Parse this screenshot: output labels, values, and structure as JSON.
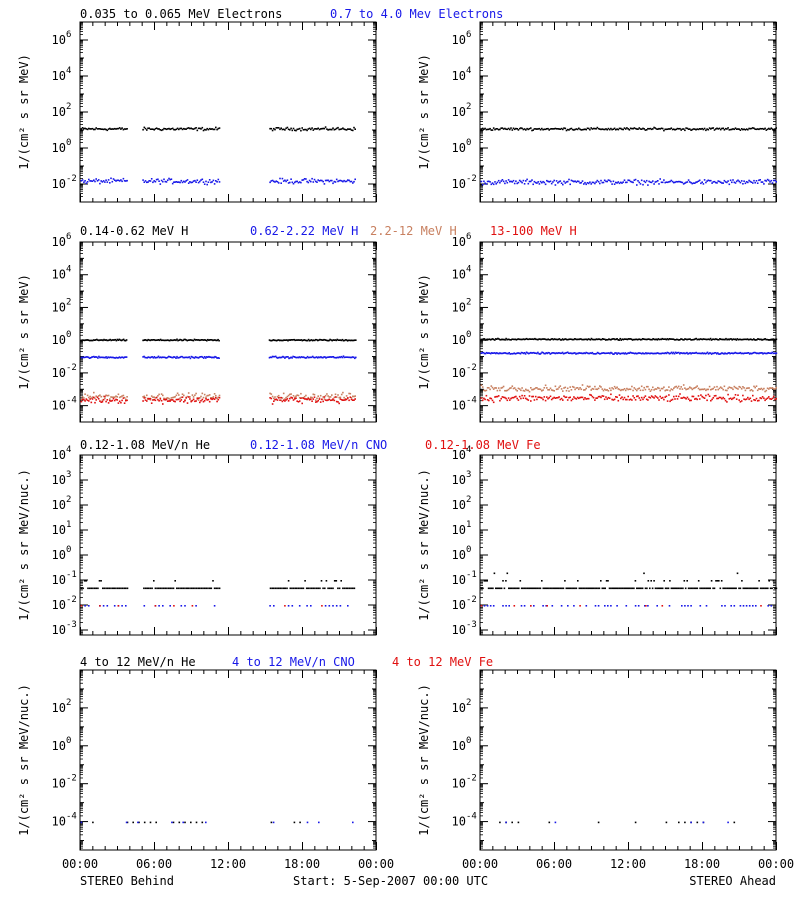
{
  "colors": {
    "black": "#000000",
    "blue": "#1818e8",
    "tan": "#c88060",
    "red": "#e01010"
  },
  "footer": {
    "left": "STEREO Behind",
    "center": "Start:  5-Sep-2007 00:00 UTC",
    "right": "STEREO Ahead"
  },
  "x_ticks": [
    "00:00",
    "06:00",
    "12:00",
    "18:00",
    "00:00"
  ],
  "chart_data": [
    {
      "id": "row1",
      "type": "scatter",
      "ylabel": "1/(cm² s sr MeV)",
      "ylim_log10": [
        -3,
        7
      ],
      "ytick_exponents": [
        -2,
        0,
        2,
        4,
        6
      ],
      "legend": [
        {
          "text": "0.035 to 0.065 MeV Electrons",
          "color": "black"
        },
        {
          "text": "0.7 to 4.0 Mev Electrons",
          "color": "blue"
        }
      ],
      "panels": [
        {
          "side": "STEREO Behind",
          "gaps_hours": [
            [
              3.8,
              5.0
            ],
            [
              11.3,
              15.3
            ]
          ],
          "end_hour": 22.3,
          "series": [
            {
              "name": "0.035 to 0.065 MeV Electrons",
              "color": "black",
              "log10_center": 1.1,
              "scatter": 0.12,
              "every_min": 6
            },
            {
              "name": "0.7 to 4.0 Mev Electrons",
              "color": "blue",
              "log10_center": -1.8,
              "scatter": 0.2,
              "every_min": 6
            }
          ]
        },
        {
          "side": "STEREO Ahead",
          "gaps_hours": [],
          "end_hour": 24,
          "series": [
            {
              "name": "0.035 to 0.065 MeV Electrons",
              "color": "black",
              "log10_center": 1.1,
              "scatter": 0.1,
              "every_min": 6
            },
            {
              "name": "0.7 to 4.0 Mev Electrons",
              "color": "blue",
              "log10_center": -1.85,
              "scatter": 0.2,
              "every_min": 6
            }
          ]
        }
      ]
    },
    {
      "id": "row2",
      "type": "scatter",
      "ylabel": "1/(cm² s sr MeV)",
      "ylim_log10": [
        -5,
        6
      ],
      "ytick_exponents": [
        -4,
        -2,
        0,
        2,
        4,
        6
      ],
      "legend": [
        {
          "text": "0.14-0.62 MeV H",
          "color": "black"
        },
        {
          "text": "0.62-2.22 MeV H",
          "color": "blue"
        },
        {
          "text": "2.2-12 MeV H",
          "color": "tan"
        },
        {
          "text": "13-100 MeV H",
          "color": "red"
        }
      ],
      "panels": [
        {
          "side": "STEREO Behind",
          "gaps_hours": [
            [
              3.8,
              5.0
            ],
            [
              11.3,
              15.3
            ]
          ],
          "end_hour": 22.3,
          "series": [
            {
              "name": "0.14-0.62 MeV H",
              "color": "black",
              "log10_center": 0.05,
              "scatter": 0.06,
              "every_min": 5
            },
            {
              "name": "0.62-2.22 MeV H",
              "color": "blue",
              "log10_center": -1.0,
              "scatter": 0.08,
              "every_min": 5
            },
            {
              "name": "2.2-12 MeV H",
              "color": "tan",
              "log10_center": -3.4,
              "scatter": 0.3,
              "every_min": 6
            },
            {
              "name": "13-100 MeV H",
              "color": "red",
              "log10_center": -3.6,
              "scatter": 0.3,
              "every_min": 6
            }
          ]
        },
        {
          "side": "STEREO Ahead",
          "gaps_hours": [],
          "end_hour": 24,
          "series": [
            {
              "name": "0.14-0.62 MeV H",
              "color": "black",
              "log10_center": 0.1,
              "scatter": 0.06,
              "every_min": 5
            },
            {
              "name": "0.62-2.22 MeV H",
              "color": "blue",
              "log10_center": -0.75,
              "scatter": 0.07,
              "every_min": 5
            },
            {
              "name": "2.2-12 MeV H",
              "color": "tan",
              "log10_center": -2.9,
              "scatter": 0.25,
              "every_min": 6
            },
            {
              "name": "13-100 MeV H",
              "color": "red",
              "log10_center": -3.5,
              "scatter": 0.3,
              "every_min": 6
            }
          ]
        }
      ]
    },
    {
      "id": "row3",
      "type": "scatter",
      "ylabel": "1/(cm² s sr MeV/nuc.)",
      "ylim_log10": [
        -3.2,
        4
      ],
      "ytick_exponents": [
        -3,
        -2,
        -1,
        0,
        1,
        2,
        3,
        4
      ],
      "legend": [
        {
          "text": "0.12-1.08 MeV/n He",
          "color": "black"
        },
        {
          "text": "0.12-1.08 MeV/n CNO",
          "color": "blue"
        },
        {
          "text": "0.12-1.08 MeV Fe",
          "color": "red"
        }
      ],
      "panels": [
        {
          "side": "STEREO Behind",
          "gaps_hours": [
            [
              3.8,
              5.0
            ],
            [
              11.3,
              15.3
            ]
          ],
          "end_hour": 22.3,
          "series": [
            {
              "name": "0.12-1.08 MeV/n He",
              "color": "black",
              "log10_center": -1.3,
              "scatter": 0.15,
              "every_min": 8,
              "quantized": [
                -1.3,
                -1.0
              ]
            },
            {
              "name": "0.12-1.08 MeV/n CNO",
              "color": "blue",
              "log10_center": -2.0,
              "scatter": 0.0,
              "every_min": 18
            },
            {
              "name": "0.12-1.08 MeV Fe",
              "color": "red",
              "log10_center": -2.0,
              "scatter": 0.0,
              "every_min": 90
            }
          ]
        },
        {
          "side": "STEREO Ahead",
          "gaps_hours": [],
          "end_hour": 24,
          "series": [
            {
              "name": "0.12-1.08 MeV/n He",
              "color": "black",
              "log10_center": -1.3,
              "scatter": 0.15,
              "every_min": 7,
              "quantized": [
                -1.3,
                -1.0,
                -0.7
              ]
            },
            {
              "name": "0.12-1.08 MeV/n CNO",
              "color": "blue",
              "log10_center": -2.0,
              "scatter": 0.0,
              "every_min": 15
            },
            {
              "name": "0.12-1.08 MeV Fe",
              "color": "red",
              "log10_center": -2.0,
              "scatter": 0.0,
              "every_min": 80
            }
          ]
        }
      ]
    },
    {
      "id": "row4",
      "type": "scatter",
      "ylabel": "1/(cm² s sr MeV/nuc.)",
      "ylim_log10": [
        -5.5,
        4
      ],
      "ytick_exponents": [
        -4,
        -2,
        0,
        2
      ],
      "legend": [
        {
          "text": "4 to 12 MeV/n He",
          "color": "black"
        },
        {
          "text": "4 to 12 MeV/n CNO",
          "color": "blue"
        },
        {
          "text": "4 to 12 MeV Fe",
          "color": "red"
        }
      ],
      "panels": [
        {
          "side": "STEREO Behind",
          "gaps_hours": [
            [
              1.6,
              3.3
            ],
            [
              10.3,
              15.0
            ],
            [
              16.2,
              17.0
            ],
            [
              20.3,
              22.0
            ]
          ],
          "end_hour": 22.3,
          "series": [
            {
              "name": "4 to 12 MeV/n He",
              "color": "black",
              "log10_center": -4.0,
              "scatter": 0.0,
              "every_min": 28
            },
            {
              "name": "4 to 12 MeV/n CNO",
              "color": "blue",
              "log10_center": -4.0,
              "scatter": 0.0,
              "every_min": 55
            }
          ]
        },
        {
          "side": "STEREO Ahead",
          "gaps_hours": [
            [
              0,
              1.5
            ],
            [
              3.8,
              5.2
            ],
            [
              6.2,
              9.2
            ],
            [
              9.6,
              11.8
            ],
            [
              12.6,
              14.3
            ],
            [
              21.0,
              23.6
            ]
          ],
          "end_hour": 24,
          "series": [
            {
              "name": "4 to 12 MeV/n He",
              "color": "black",
              "log10_center": -4.0,
              "scatter": 0.0,
              "every_min": 30
            },
            {
              "name": "4 to 12 MeV/n CNO",
              "color": "blue",
              "log10_center": -4.0,
              "scatter": 0.0,
              "every_min": 60
            }
          ]
        }
      ]
    }
  ]
}
